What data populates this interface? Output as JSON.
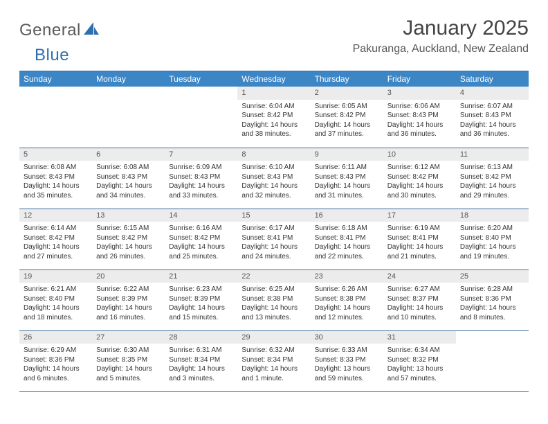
{
  "logo": {
    "text_a": "General",
    "text_b": "Blue"
  },
  "title": "January 2025",
  "location": "Pakuranga, Auckland, New Zealand",
  "colors": {
    "header_bg": "#3d86c6",
    "header_fg": "#ffffff",
    "daynum_bg": "#ececec",
    "rule": "#2f6fb0",
    "row_border": "#3d6c9c"
  },
  "day_headers": [
    "Sunday",
    "Monday",
    "Tuesday",
    "Wednesday",
    "Thursday",
    "Friday",
    "Saturday"
  ],
  "weeks": [
    [
      {
        "empty": true
      },
      {
        "empty": true
      },
      {
        "empty": true
      },
      {
        "num": "1",
        "sunrise": "Sunrise: 6:04 AM",
        "sunset": "Sunset: 8:42 PM",
        "day1": "Daylight: 14 hours",
        "day2": "and 38 minutes."
      },
      {
        "num": "2",
        "sunrise": "Sunrise: 6:05 AM",
        "sunset": "Sunset: 8:42 PM",
        "day1": "Daylight: 14 hours",
        "day2": "and 37 minutes."
      },
      {
        "num": "3",
        "sunrise": "Sunrise: 6:06 AM",
        "sunset": "Sunset: 8:43 PM",
        "day1": "Daylight: 14 hours",
        "day2": "and 36 minutes."
      },
      {
        "num": "4",
        "sunrise": "Sunrise: 6:07 AM",
        "sunset": "Sunset: 8:43 PM",
        "day1": "Daylight: 14 hours",
        "day2": "and 36 minutes."
      }
    ],
    [
      {
        "num": "5",
        "sunrise": "Sunrise: 6:08 AM",
        "sunset": "Sunset: 8:43 PM",
        "day1": "Daylight: 14 hours",
        "day2": "and 35 minutes."
      },
      {
        "num": "6",
        "sunrise": "Sunrise: 6:08 AM",
        "sunset": "Sunset: 8:43 PM",
        "day1": "Daylight: 14 hours",
        "day2": "and 34 minutes."
      },
      {
        "num": "7",
        "sunrise": "Sunrise: 6:09 AM",
        "sunset": "Sunset: 8:43 PM",
        "day1": "Daylight: 14 hours",
        "day2": "and 33 minutes."
      },
      {
        "num": "8",
        "sunrise": "Sunrise: 6:10 AM",
        "sunset": "Sunset: 8:43 PM",
        "day1": "Daylight: 14 hours",
        "day2": "and 32 minutes."
      },
      {
        "num": "9",
        "sunrise": "Sunrise: 6:11 AM",
        "sunset": "Sunset: 8:43 PM",
        "day1": "Daylight: 14 hours",
        "day2": "and 31 minutes."
      },
      {
        "num": "10",
        "sunrise": "Sunrise: 6:12 AM",
        "sunset": "Sunset: 8:42 PM",
        "day1": "Daylight: 14 hours",
        "day2": "and 30 minutes."
      },
      {
        "num": "11",
        "sunrise": "Sunrise: 6:13 AM",
        "sunset": "Sunset: 8:42 PM",
        "day1": "Daylight: 14 hours",
        "day2": "and 29 minutes."
      }
    ],
    [
      {
        "num": "12",
        "sunrise": "Sunrise: 6:14 AM",
        "sunset": "Sunset: 8:42 PM",
        "day1": "Daylight: 14 hours",
        "day2": "and 27 minutes."
      },
      {
        "num": "13",
        "sunrise": "Sunrise: 6:15 AM",
        "sunset": "Sunset: 8:42 PM",
        "day1": "Daylight: 14 hours",
        "day2": "and 26 minutes."
      },
      {
        "num": "14",
        "sunrise": "Sunrise: 6:16 AM",
        "sunset": "Sunset: 8:42 PM",
        "day1": "Daylight: 14 hours",
        "day2": "and 25 minutes."
      },
      {
        "num": "15",
        "sunrise": "Sunrise: 6:17 AM",
        "sunset": "Sunset: 8:41 PM",
        "day1": "Daylight: 14 hours",
        "day2": "and 24 minutes."
      },
      {
        "num": "16",
        "sunrise": "Sunrise: 6:18 AM",
        "sunset": "Sunset: 8:41 PM",
        "day1": "Daylight: 14 hours",
        "day2": "and 22 minutes."
      },
      {
        "num": "17",
        "sunrise": "Sunrise: 6:19 AM",
        "sunset": "Sunset: 8:41 PM",
        "day1": "Daylight: 14 hours",
        "day2": "and 21 minutes."
      },
      {
        "num": "18",
        "sunrise": "Sunrise: 6:20 AM",
        "sunset": "Sunset: 8:40 PM",
        "day1": "Daylight: 14 hours",
        "day2": "and 19 minutes."
      }
    ],
    [
      {
        "num": "19",
        "sunrise": "Sunrise: 6:21 AM",
        "sunset": "Sunset: 8:40 PM",
        "day1": "Daylight: 14 hours",
        "day2": "and 18 minutes."
      },
      {
        "num": "20",
        "sunrise": "Sunrise: 6:22 AM",
        "sunset": "Sunset: 8:39 PM",
        "day1": "Daylight: 14 hours",
        "day2": "and 16 minutes."
      },
      {
        "num": "21",
        "sunrise": "Sunrise: 6:23 AM",
        "sunset": "Sunset: 8:39 PM",
        "day1": "Daylight: 14 hours",
        "day2": "and 15 minutes."
      },
      {
        "num": "22",
        "sunrise": "Sunrise: 6:25 AM",
        "sunset": "Sunset: 8:38 PM",
        "day1": "Daylight: 14 hours",
        "day2": "and 13 minutes."
      },
      {
        "num": "23",
        "sunrise": "Sunrise: 6:26 AM",
        "sunset": "Sunset: 8:38 PM",
        "day1": "Daylight: 14 hours",
        "day2": "and 12 minutes."
      },
      {
        "num": "24",
        "sunrise": "Sunrise: 6:27 AM",
        "sunset": "Sunset: 8:37 PM",
        "day1": "Daylight: 14 hours",
        "day2": "and 10 minutes."
      },
      {
        "num": "25",
        "sunrise": "Sunrise: 6:28 AM",
        "sunset": "Sunset: 8:36 PM",
        "day1": "Daylight: 14 hours",
        "day2": "and 8 minutes."
      }
    ],
    [
      {
        "num": "26",
        "sunrise": "Sunrise: 6:29 AM",
        "sunset": "Sunset: 8:36 PM",
        "day1": "Daylight: 14 hours",
        "day2": "and 6 minutes."
      },
      {
        "num": "27",
        "sunrise": "Sunrise: 6:30 AM",
        "sunset": "Sunset: 8:35 PM",
        "day1": "Daylight: 14 hours",
        "day2": "and 5 minutes."
      },
      {
        "num": "28",
        "sunrise": "Sunrise: 6:31 AM",
        "sunset": "Sunset: 8:34 PM",
        "day1": "Daylight: 14 hours",
        "day2": "and 3 minutes."
      },
      {
        "num": "29",
        "sunrise": "Sunrise: 6:32 AM",
        "sunset": "Sunset: 8:34 PM",
        "day1": "Daylight: 14 hours",
        "day2": "and 1 minute."
      },
      {
        "num": "30",
        "sunrise": "Sunrise: 6:33 AM",
        "sunset": "Sunset: 8:33 PM",
        "day1": "Daylight: 13 hours",
        "day2": "and 59 minutes."
      },
      {
        "num": "31",
        "sunrise": "Sunrise: 6:34 AM",
        "sunset": "Sunset: 8:32 PM",
        "day1": "Daylight: 13 hours",
        "day2": "and 57 minutes."
      },
      {
        "empty": true
      }
    ]
  ]
}
